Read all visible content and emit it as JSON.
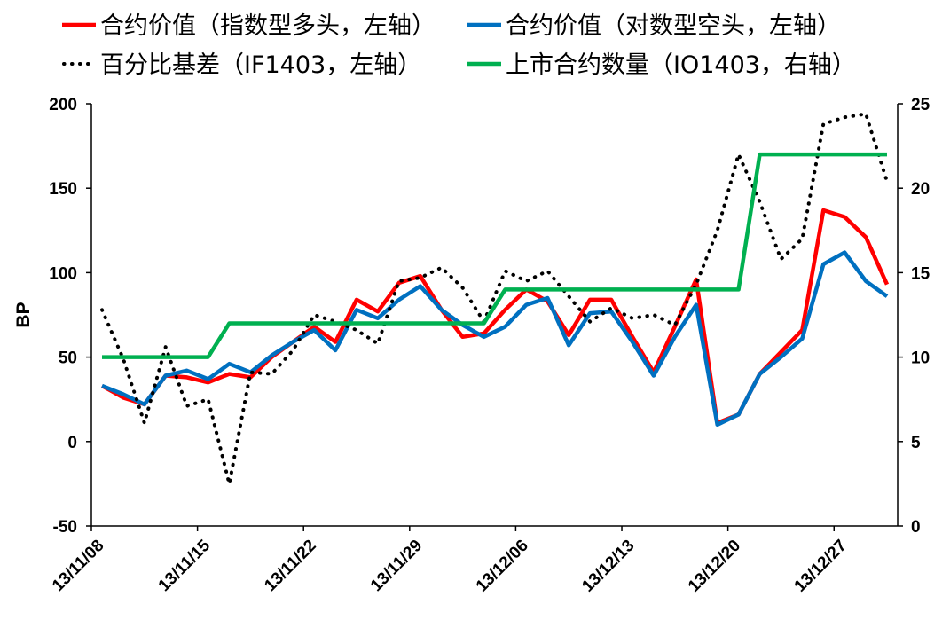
{
  "chart_data": {
    "type": "line",
    "categories": [
      "13/11/08",
      "",
      "",
      "",
      "",
      "13/11/15",
      "",
      "",
      "",
      "",
      "13/11/22",
      "",
      "",
      "",
      "",
      "13/11/29",
      "",
      "",
      "",
      "",
      "13/12/06",
      "",
      "",
      "",
      "",
      "13/12/13",
      "",
      "",
      "",
      "",
      "13/12/20",
      "",
      "",
      "",
      "",
      "13/12/27",
      "",
      ""
    ],
    "series": [
      {
        "name": "合约价值（指数型多头，左轴）",
        "axis": "left",
        "color": "#FF0000",
        "style": "solid",
        "values": [
          33,
          26,
          22,
          39,
          38,
          35,
          40,
          38,
          50,
          59,
          68,
          59,
          84,
          77,
          94,
          98,
          78,
          62,
          64,
          78,
          90,
          83,
          63,
          84,
          84,
          62,
          41,
          68,
          96,
          11,
          16,
          40,
          53,
          66,
          137,
          133,
          121,
          93
        ]
      },
      {
        "name": "合约价值（对数型空头，左轴）",
        "axis": "left",
        "color": "#0070C0",
        "style": "solid",
        "values": [
          33,
          28,
          22,
          39,
          42,
          37,
          46,
          41,
          51,
          59,
          66,
          54,
          78,
          73,
          84,
          92,
          78,
          69,
          62,
          68,
          81,
          85,
          57,
          76,
          77,
          59,
          39,
          62,
          81,
          10,
          16,
          40,
          50,
          61,
          105,
          112,
          95,
          86
        ]
      },
      {
        "name": "百分比基差（IF1403，左轴）",
        "axis": "left",
        "color": "#000000",
        "style": "dotted",
        "values": [
          78,
          49,
          11,
          56,
          21,
          25,
          -25,
          41,
          40,
          54,
          75,
          71,
          66,
          58,
          95,
          97,
          103,
          91,
          71,
          101,
          95,
          101,
          86,
          71,
          79,
          73,
          75,
          69,
          93,
          125,
          170,
          142,
          108,
          120,
          188,
          192,
          194,
          154
        ]
      },
      {
        "name": "上市合约数量（IO1403，右轴）",
        "axis": "right",
        "color": "#00B050",
        "style": "solid",
        "values": [
          10,
          10,
          10,
          10,
          10,
          10,
          12,
          12,
          12,
          12,
          12,
          12,
          12,
          12,
          12,
          12,
          12,
          12,
          12,
          14,
          14,
          14,
          14,
          14,
          14,
          14,
          14,
          14,
          14,
          14,
          14,
          22,
          22,
          22,
          22,
          22,
          22,
          22
        ]
      }
    ],
    "ylabel": "BP",
    "y_left": {
      "min": -50,
      "max": 200,
      "step": 50
    },
    "y_right": {
      "min": 0,
      "max": 25,
      "step": 5
    },
    "grid": false,
    "legend_position": "top"
  }
}
